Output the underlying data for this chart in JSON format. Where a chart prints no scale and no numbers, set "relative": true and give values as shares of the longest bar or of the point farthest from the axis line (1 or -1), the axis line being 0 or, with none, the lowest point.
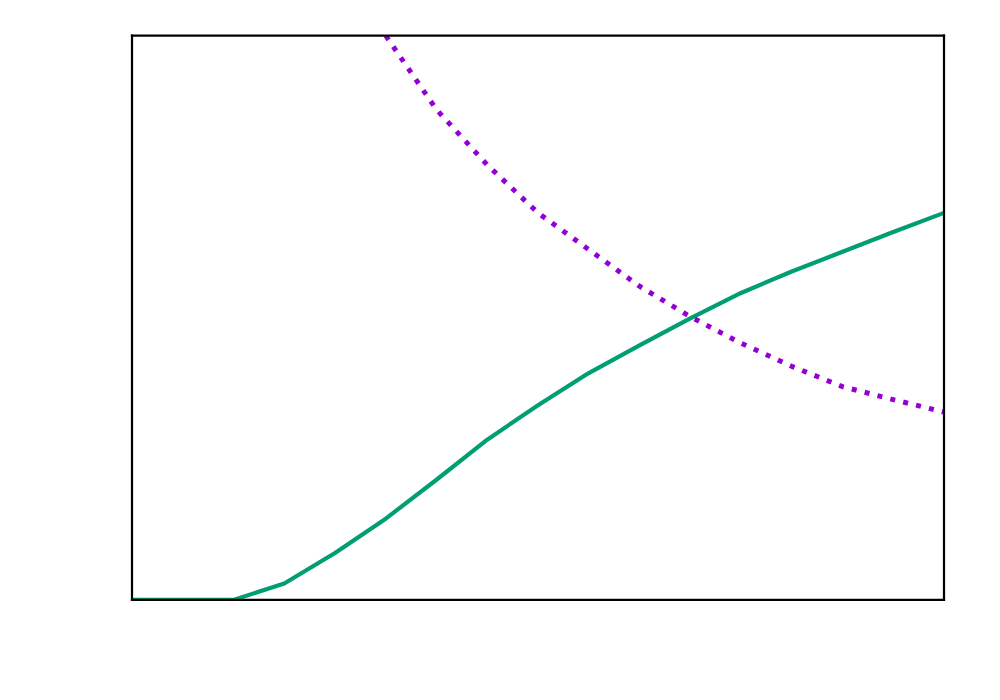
{
  "chart_data": {
    "type": "line",
    "relative": true,
    "categories": [
      null,
      null,
      null,
      null,
      null,
      null,
      null,
      null,
      null,
      null,
      null,
      null,
      null,
      null,
      null,
      null,
      null
    ],
    "series": [
      {
        "color": "#009e73",
        "line_style": "solid",
        "values": [
          0,
          0,
          0,
          0.029,
          0.083,
          0.144,
          0.213,
          0.284,
          0.345,
          0.402,
          0.451,
          0.499,
          0.544,
          0.582,
          0.617,
          0.652,
          0.686
        ]
      },
      {
        "color": "#9400d3",
        "line_style": "dotted",
        "values": [
          null,
          null,
          null,
          null,
          null,
          1,
          0.869,
          0.771,
          0.686,
          0.621,
          0.556,
          0.502,
          0.455,
          0.414,
          0.378,
          0.355,
          0.333
        ]
      }
    ],
    "legend": false
  }
}
